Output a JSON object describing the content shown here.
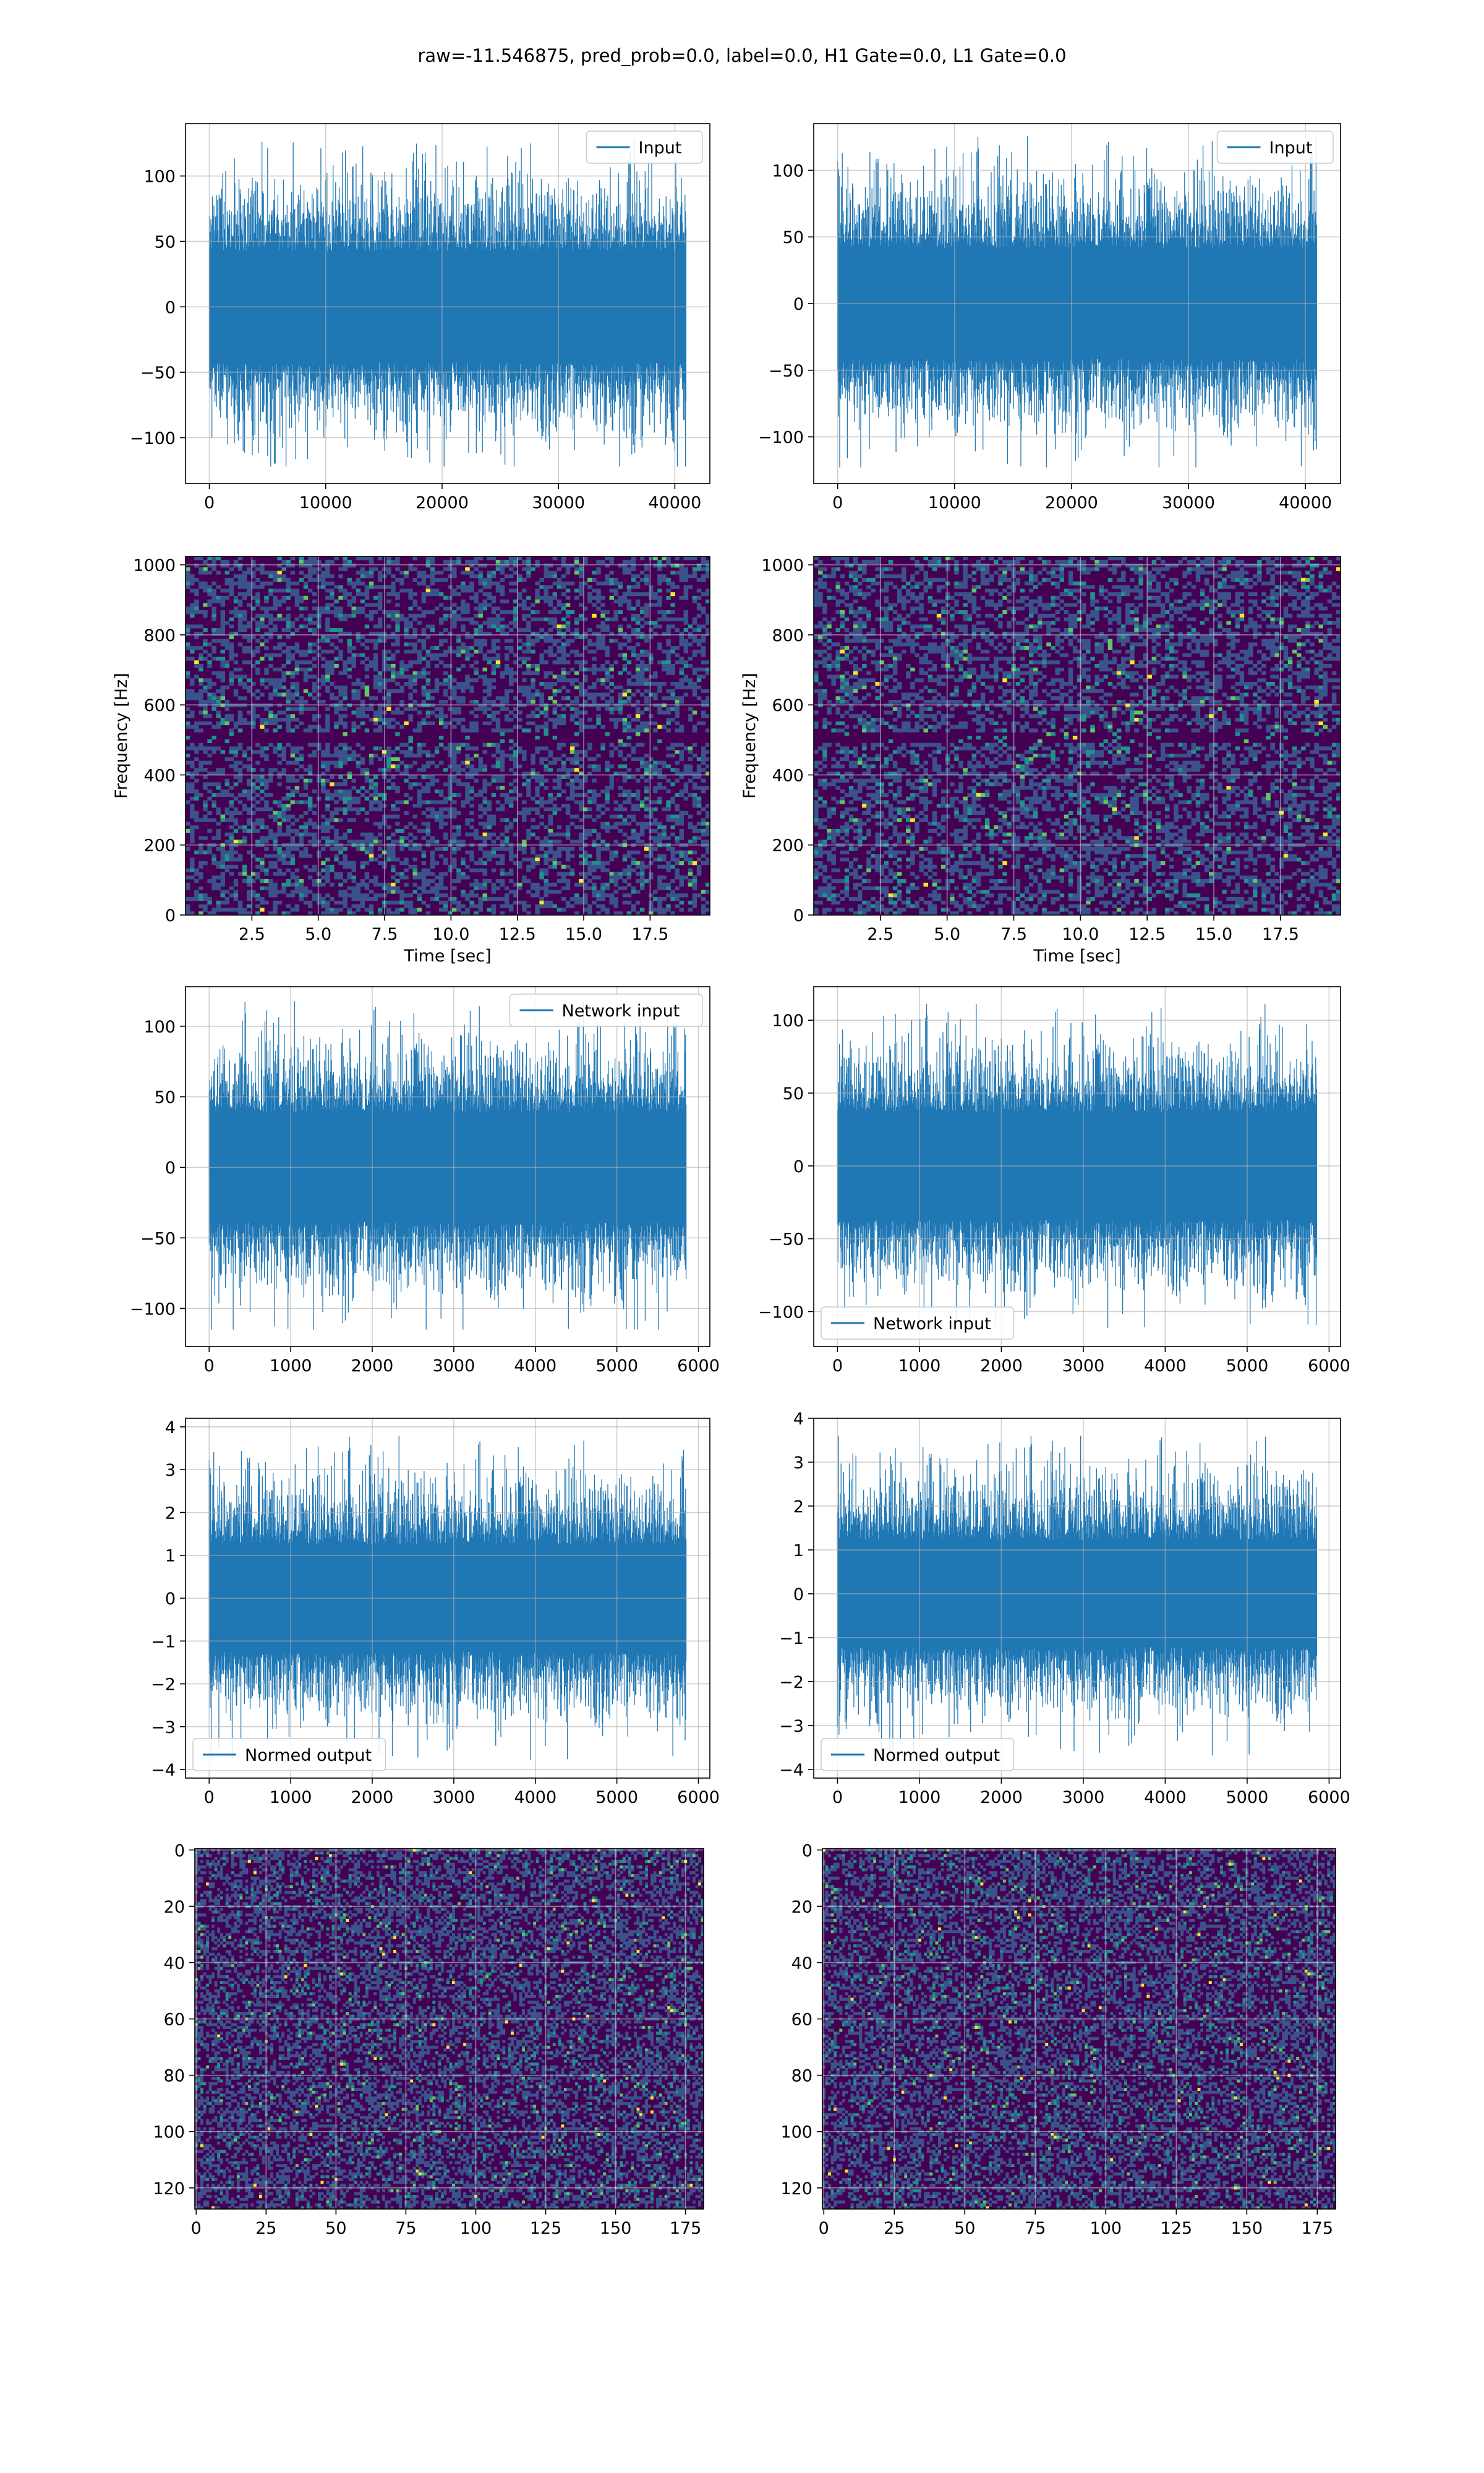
{
  "figure": {
    "title": "raw=-11.546875, pred_prob=0.0, label=0.0, H1 Gate=0.0, L1 Gate=0.0",
    "colors": {
      "line": "#1f77b4",
      "grid": "#b0b0b0",
      "viridis_low": "#440154",
      "viridis_mid": "#3b528b",
      "viridis_teal": "#21918c",
      "viridis_green": "#5ec962",
      "viridis_high": "#fde725"
    }
  },
  "chart_data": [
    {
      "id": "h1-input",
      "type": "line",
      "series": [
        {
          "name": "Input",
          "n_points": 40960,
          "envelope": {
            "y_min": -122,
            "y_max": 129
          }
        }
      ],
      "legend": "upper right",
      "x_ticks": [
        "0",
        "10000",
        "20000",
        "30000",
        "40000"
      ],
      "y_ticks": [
        "100",
        "50",
        "0",
        "−50",
        "−100"
      ],
      "xlim": [
        -2048,
        43008
      ],
      "ylim": [
        -135,
        140
      ],
      "grid": true
    },
    {
      "id": "l1-input",
      "type": "line",
      "series": [
        {
          "name": "Input",
          "n_points": 40960,
          "envelope": {
            "y_min": -123,
            "y_max": 126
          }
        }
      ],
      "legend": "upper right",
      "x_ticks": [
        "0",
        "10000",
        "20000",
        "30000",
        "40000"
      ],
      "y_ticks": [
        "100",
        "50",
        "0",
        "−50",
        "−100"
      ],
      "xlim": [
        -2048,
        43008
      ],
      "ylim": [
        -135,
        135
      ],
      "grid": true
    },
    {
      "id": "h1-spectrogram",
      "type": "heatmap",
      "colormap": "viridis",
      "xlabel": "Time [sec]",
      "ylabel": "Frequency [Hz]",
      "x_ticks": [
        "2.5",
        "5.0",
        "7.5",
        "10.0",
        "12.5",
        "15.0",
        "17.5"
      ],
      "y_ticks": [
        "1000",
        "800",
        "600",
        "400",
        "200",
        "0"
      ],
      "xlim": [
        0.0,
        19.75
      ],
      "ylim": [
        0,
        1024
      ],
      "grid": true
    },
    {
      "id": "l1-spectrogram",
      "type": "heatmap",
      "colormap": "viridis",
      "xlabel": "Time [sec]",
      "ylabel": "Frequency [Hz]",
      "x_ticks": [
        "2.5",
        "5.0",
        "7.5",
        "10.0",
        "12.5",
        "15.0",
        "17.5"
      ],
      "y_ticks": [
        "1000",
        "800",
        "600",
        "400",
        "200",
        "0"
      ],
      "xlim": [
        0.0,
        19.75
      ],
      "ylim": [
        0,
        1024
      ],
      "grid": true
    },
    {
      "id": "h1-network-input",
      "type": "line",
      "series": [
        {
          "name": "Network input",
          "n_points": 5850,
          "envelope": {
            "y_min": -115,
            "y_max": 118
          }
        }
      ],
      "legend": "upper right",
      "x_ticks": [
        "0",
        "1000",
        "2000",
        "3000",
        "4000",
        "5000",
        "6000"
      ],
      "y_ticks": [
        "100",
        "50",
        "0",
        "−50",
        "−100"
      ],
      "xlim": [
        -290,
        6140
      ],
      "ylim": [
        -127,
        128
      ],
      "grid": true
    },
    {
      "id": "l1-network-input",
      "type": "line",
      "series": [
        {
          "name": "Network input",
          "n_points": 5850,
          "envelope": {
            "y_min": -112,
            "y_max": 111
          }
        }
      ],
      "legend": "lower left",
      "x_ticks": [
        "0",
        "1000",
        "2000",
        "3000",
        "4000",
        "5000",
        "6000"
      ],
      "y_ticks": [
        "100",
        "50",
        "0",
        "−50",
        "−100"
      ],
      "xlim": [
        -290,
        6140
      ],
      "ylim": [
        -124,
        123
      ],
      "grid": true
    },
    {
      "id": "h1-normed-output",
      "type": "line",
      "series": [
        {
          "name": "Normed output",
          "n_points": 5850,
          "envelope": {
            "y_min": -3.8,
            "y_max": 3.8
          }
        }
      ],
      "legend": "lower left",
      "x_ticks": [
        "0",
        "1000",
        "2000",
        "3000",
        "4000",
        "5000",
        "6000"
      ],
      "y_ticks": [
        "4",
        "3",
        "2",
        "1",
        "0",
        "−1",
        "−2",
        "−3",
        "−4"
      ],
      "xlim": [
        -290,
        6140
      ],
      "ylim": [
        -4.2,
        4.2
      ],
      "grid": true
    },
    {
      "id": "l1-normed-output",
      "type": "line",
      "series": [
        {
          "name": "Normed output",
          "n_points": 5850,
          "envelope": {
            "y_min": -3.7,
            "y_max": 3.6
          }
        }
      ],
      "legend": "lower left",
      "x_ticks": [
        "0",
        "1000",
        "2000",
        "3000",
        "4000",
        "5000",
        "6000"
      ],
      "y_ticks": [
        "4",
        "3",
        "2",
        "1",
        "0",
        "−1",
        "−2",
        "−3",
        "−4"
      ],
      "xlim": [
        -290,
        6140
      ],
      "ylim": [
        -4.2,
        4.0
      ],
      "grid": true
    },
    {
      "id": "h1-image",
      "type": "heatmap",
      "colormap": "viridis",
      "shape": [
        128,
        182
      ],
      "x_ticks": [
        "0",
        "25",
        "50",
        "75",
        "100",
        "125",
        "150",
        "175"
      ],
      "y_ticks": [
        "0",
        "20",
        "40",
        "60",
        "80",
        "100",
        "120"
      ],
      "xlim": [
        -0.5,
        181.5
      ],
      "ylim": [
        127.5,
        -0.5
      ],
      "grid": true
    },
    {
      "id": "l1-image",
      "type": "heatmap",
      "colormap": "viridis",
      "shape": [
        128,
        182
      ],
      "x_ticks": [
        "0",
        "25",
        "50",
        "75",
        "100",
        "125",
        "150",
        "175"
      ],
      "y_ticks": [
        "0",
        "20",
        "40",
        "60",
        "80",
        "100",
        "120"
      ],
      "xlim": [
        -0.5,
        181.5
      ],
      "ylim": [
        127.5,
        -0.5
      ],
      "grid": true
    }
  ]
}
